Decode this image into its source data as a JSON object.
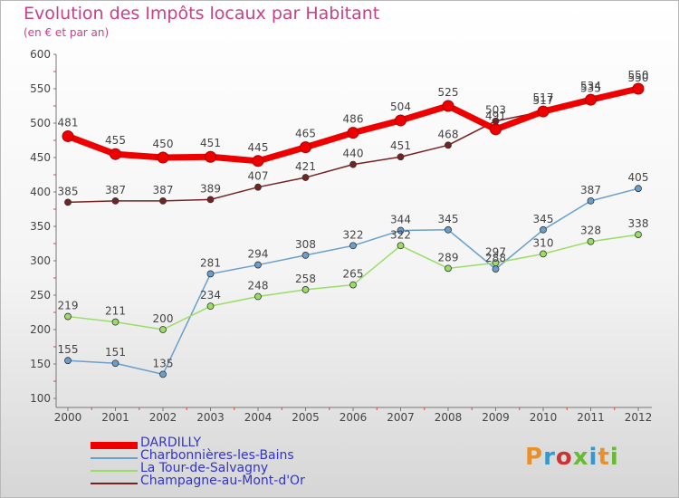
{
  "title": "Evolution des Impôts locaux par Habitant",
  "subtitle": "(en € et par an)",
  "logo_text": "Proxiti",
  "logo_colors": [
    "#e8902a",
    "#3399cc",
    "#cc3333",
    "#66bb33",
    "#3399cc",
    "#e8902a",
    "#66bb33"
  ],
  "colors": {
    "title": "#c8408a",
    "legend_text": "#3333cc",
    "axis": "#444444",
    "tick_label": "#444444"
  },
  "chart_data": {
    "type": "line",
    "title": "Evolution des Impôts locaux par Habitant",
    "subtitle": "(en € et par an)",
    "xlabel": "",
    "ylabel": "",
    "ylim": [
      100,
      600
    ],
    "yticks": [
      100,
      150,
      200,
      250,
      300,
      350,
      400,
      450,
      500,
      550,
      600
    ],
    "categories": [
      "2000",
      "2001",
      "2002",
      "2003",
      "2004",
      "2005",
      "2006",
      "2007",
      "2008",
      "2009",
      "2010",
      "2011",
      "2012"
    ],
    "series": [
      {
        "name": "DARDILLY",
        "color": "#ee0000",
        "values": [
          481,
          455,
          450,
          451,
          445,
          465,
          486,
          504,
          525,
          491,
          517,
          534,
          550
        ]
      },
      {
        "name": "Charbonnières-les-Bains",
        "color": "#6a9fcd",
        "values": [
          155,
          151,
          135,
          281,
          294,
          308,
          322,
          344,
          345,
          288,
          345,
          387,
          405
        ]
      },
      {
        "name": "La  Tour-de-Salvagny",
        "color": "#99dd66",
        "values": [
          219,
          211,
          200,
          234,
          248,
          258,
          265,
          322,
          289,
          297,
          310,
          328,
          338
        ]
      },
      {
        "name": "Champagne-au-Mont-d'Or",
        "color": "#772222",
        "values": [
          385,
          387,
          387,
          389,
          407,
          421,
          440,
          451,
          468,
          503,
          517,
          535,
          550
        ]
      }
    ]
  }
}
